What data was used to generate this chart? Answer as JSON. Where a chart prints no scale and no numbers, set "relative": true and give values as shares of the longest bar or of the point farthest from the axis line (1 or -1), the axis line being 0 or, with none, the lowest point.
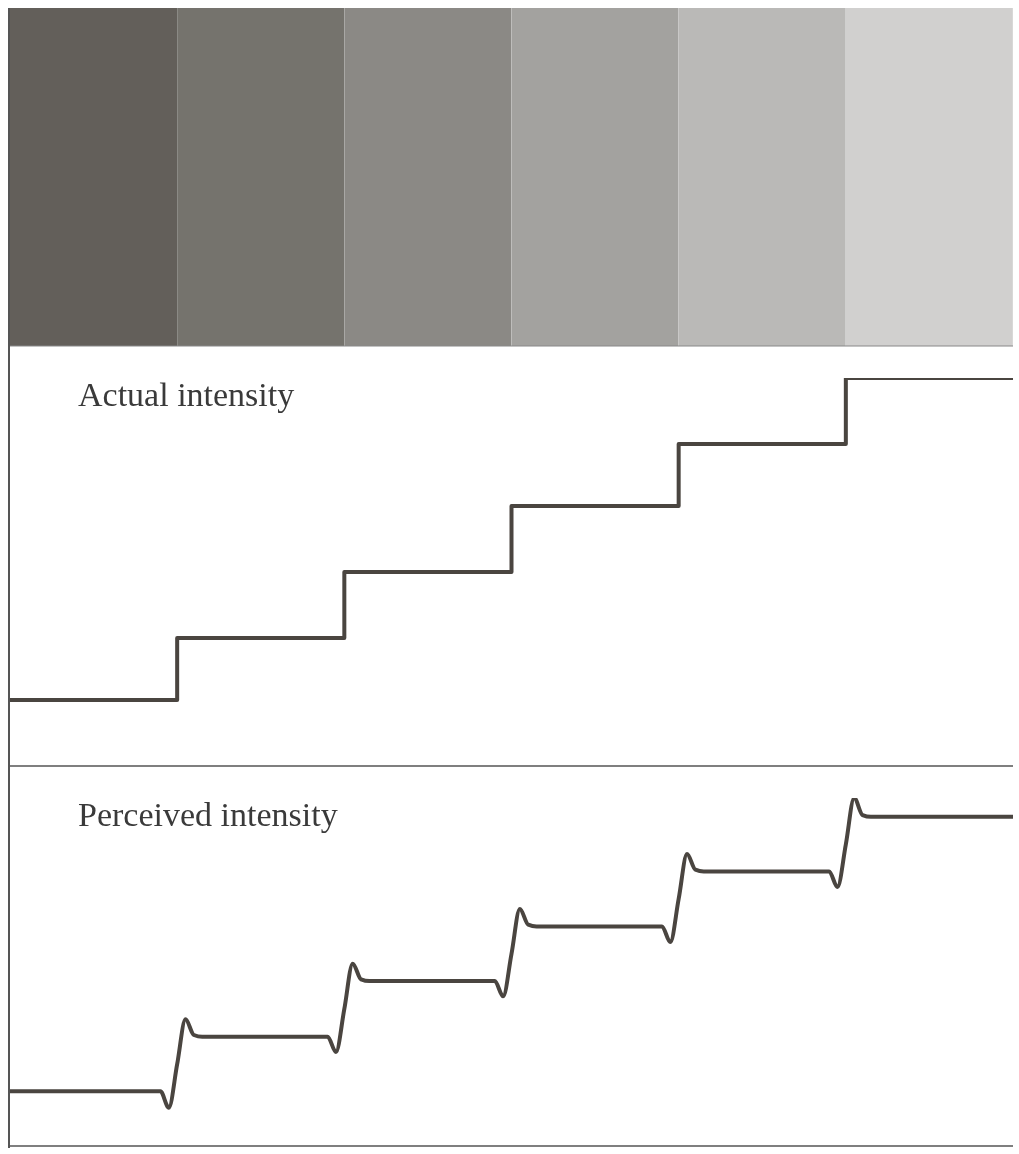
{
  "chart_data": [
    {
      "type": "bar",
      "relative": true,
      "categories": [
        null,
        null,
        null,
        null,
        null,
        null
      ],
      "values": [
        1,
        1,
        1,
        1,
        1,
        1
      ],
      "colors": [
        "#635f5a",
        "#75736d",
        "#8b8985",
        "#a3a29f",
        "#bab9b7",
        "#d1d0cf"
      ],
      "tick_labels": false
    },
    {
      "type": "step",
      "title": "Actual intensity",
      "relative": true,
      "categories": [
        null,
        null,
        null,
        null,
        null,
        null,
        null
      ],
      "values": [
        0.17,
        0.33,
        0.5,
        0.67,
        0.83,
        1,
        1
      ],
      "color": "#4a4540",
      "tick_labels": false
    },
    {
      "type": "line",
      "title": "Perceived intensity",
      "relative": true,
      "categories": [
        null,
        null,
        null,
        null,
        null,
        null,
        null,
        null,
        null,
        null,
        null,
        null,
        null,
        null,
        null,
        null,
        null,
        null,
        null,
        null,
        null,
        null,
        null,
        null,
        null,
        null,
        null,
        null,
        null,
        null,
        null,
        null,
        null,
        null,
        null,
        null,
        null,
        null,
        null,
        null,
        null,
        null,
        null,
        null,
        null,
        null,
        null,
        null,
        null,
        null,
        null,
        null,
        null,
        null,
        null,
        null,
        null,
        null,
        null,
        null,
        null,
        null,
        null,
        null,
        null,
        null,
        null,
        null,
        null,
        null,
        null,
        null,
        null,
        null,
        null,
        null,
        null,
        null,
        null,
        null,
        null,
        null,
        null,
        null,
        null,
        null,
        null,
        null,
        null,
        null,
        null,
        null,
        null,
        null,
        null,
        null,
        null,
        null,
        null,
        null,
        null,
        null,
        null,
        null,
        null,
        null,
        null,
        null,
        null,
        null,
        null,
        null,
        null,
        null,
        null,
        null,
        null,
        null,
        null,
        null,
        null
      ],
      "values": [
        0.157,
        0.157,
        0.157,
        0.157,
        0.157,
        0.157,
        0.157,
        0.157,
        0.157,
        0.157,
        0.157,
        0.157,
        0.157,
        0.157,
        0.157,
        0.157,
        0.157,
        0.157,
        0.157,
        0.11,
        0.235,
        0.364,
        0.319,
        0.314,
        0.314,
        0.314,
        0.314,
        0.314,
        0.314,
        0.314,
        0.314,
        0.314,
        0.314,
        0.314,
        0.314,
        0.314,
        0.314,
        0.314,
        0.314,
        0.27,
        0.394,
        0.524,
        0.479,
        0.474,
        0.474,
        0.474,
        0.474,
        0.474,
        0.474,
        0.474,
        0.474,
        0.474,
        0.474,
        0.474,
        0.474,
        0.474,
        0.474,
        0.474,
        0.474,
        0.43,
        0.552,
        0.681,
        0.636,
        0.631,
        0.631,
        0.631,
        0.631,
        0.631,
        0.631,
        0.631,
        0.631,
        0.631,
        0.631,
        0.631,
        0.631,
        0.631,
        0.631,
        0.631,
        0.631,
        0.586,
        0.71,
        0.839,
        0.794,
        0.789,
        0.789,
        0.789,
        0.789,
        0.789,
        0.789,
        0.789,
        0.789,
        0.789,
        0.789,
        0.789,
        0.789,
        0.789,
        0.789,
        0.789,
        0.789,
        0.744,
        0.867,
        1.0,
        0.951,
        0.946,
        0.946,
        0.946,
        0.946,
        0.946,
        0.946,
        0.946,
        0.946,
        0.946,
        0.946,
        0.946,
        0.946,
        0.946,
        0.946,
        0.946,
        0.946,
        0.946,
        0.946
      ],
      "color": "#4a4540",
      "tick_labels": false
    }
  ]
}
